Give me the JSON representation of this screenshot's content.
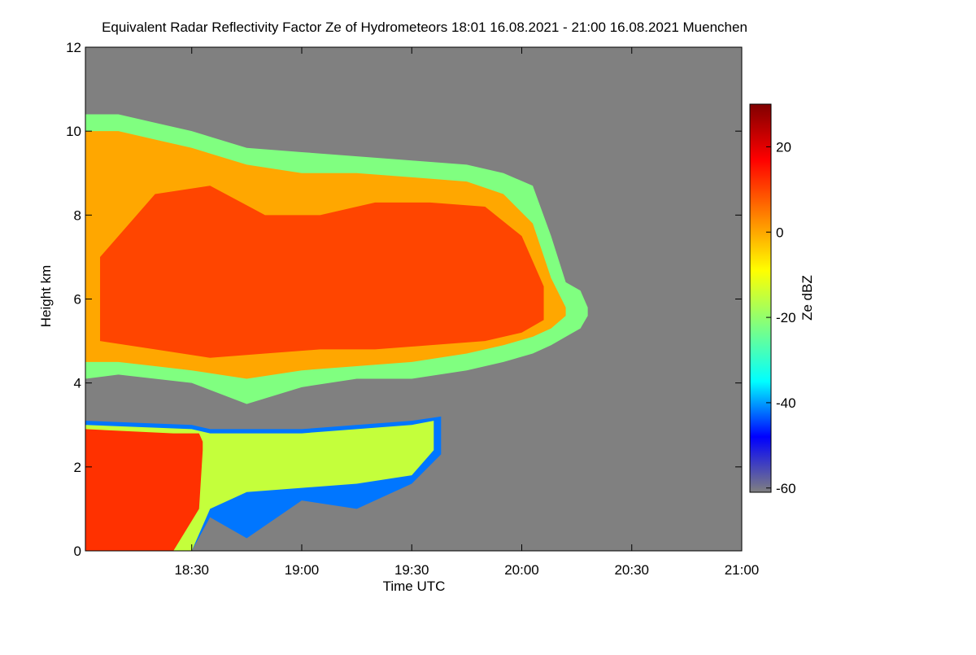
{
  "chart_data": {
    "type": "radar-echo",
    "title": "Equivalent Radar Reflectivity Factor Ze of Hydrometeors   18:01 16.08.2021 - 21:00 16.08.2021 Muenchen",
    "xlabel": "Time UTC",
    "ylabel": "Height km",
    "colorbar_label": "Ze dBZ",
    "background": "#808080",
    "xlim": [
      1081,
      1260
    ],
    "xticks": [
      {
        "value": 1110,
        "label": "18:30"
      },
      {
        "value": 1140,
        "label": "19:00"
      },
      {
        "value": 1170,
        "label": "19:30"
      },
      {
        "value": 1200,
        "label": "20:00"
      },
      {
        "value": 1230,
        "label": "20:30"
      },
      {
        "value": 1260,
        "label": "21:00"
      }
    ],
    "ylim": [
      0,
      12
    ],
    "yticks": [
      0,
      2,
      4,
      6,
      8,
      10,
      12
    ],
    "zlim": [
      -61,
      30
    ],
    "zticks": [
      -60,
      -40,
      -20,
      0,
      20
    ],
    "colormap": [
      "#808080",
      "#0000ff",
      "#00ffff",
      "#80ff80",
      "#ffff00",
      "#ff8000",
      "#ff0000",
      "#800000"
    ],
    "layers": [
      {
        "ze": -22,
        "x": [
          1081,
          1090,
          1100,
          1110,
          1125,
          1140,
          1155,
          1170,
          1185,
          1195,
          1203,
          1208,
          1212,
          1216,
          1218
        ],
        "top": [
          10.4,
          10.4,
          10.2,
          10.0,
          9.6,
          9.5,
          9.4,
          9.3,
          9.2,
          9.0,
          8.7,
          7.5,
          6.4,
          6.2,
          5.8
        ],
        "bottom": [
          4.1,
          4.2,
          4.1,
          4.0,
          3.5,
          3.9,
          4.1,
          4.1,
          4.3,
          4.5,
          4.7,
          4.9,
          5.1,
          5.3,
          5.6
        ]
      },
      {
        "ze": 0,
        "x": [
          1081,
          1090,
          1100,
          1110,
          1125,
          1140,
          1155,
          1170,
          1185,
          1195,
          1203,
          1208,
          1212
        ],
        "top": [
          10.0,
          10.0,
          9.8,
          9.6,
          9.2,
          9.0,
          9.0,
          8.9,
          8.8,
          8.5,
          7.8,
          6.5,
          5.8
        ],
        "bottom": [
          4.5,
          4.5,
          4.4,
          4.3,
          4.1,
          4.3,
          4.4,
          4.5,
          4.7,
          4.9,
          5.1,
          5.3,
          5.6
        ]
      },
      {
        "ze": 10,
        "x": [
          1085,
          1100,
          1115,
          1130,
          1145,
          1160,
          1175,
          1190,
          1200,
          1206
        ],
        "top": [
          7.0,
          8.5,
          8.7,
          8.0,
          8.0,
          8.3,
          8.3,
          8.2,
          7.5,
          6.3
        ],
        "bottom": [
          5.0,
          4.8,
          4.6,
          4.7,
          4.8,
          4.8,
          4.9,
          5.0,
          5.2,
          5.5
        ]
      },
      {
        "ze": -42,
        "x": [
          1081,
          1110,
          1115,
          1125,
          1140,
          1155,
          1170,
          1178
        ],
        "top": [
          3.1,
          3.0,
          2.9,
          2.9,
          2.9,
          3.0,
          3.1,
          3.2
        ],
        "bottom": [
          0,
          0,
          0.8,
          0.3,
          1.2,
          1.0,
          1.6,
          2.3
        ]
      },
      {
        "ze": -15,
        "x": [
          1081,
          1110,
          1115,
          1125,
          1140,
          1155,
          1170,
          1176
        ],
        "top": [
          3.0,
          2.9,
          2.8,
          2.8,
          2.8,
          2.9,
          3.0,
          3.1
        ],
        "bottom": [
          0,
          0,
          1.0,
          1.4,
          1.5,
          1.6,
          1.8,
          2.4
        ]
      },
      {
        "ze": 12,
        "x": [
          1081,
          1105,
          1112,
          1113
        ],
        "top": [
          2.9,
          2.8,
          2.8,
          2.6
        ],
        "bottom": [
          0,
          0,
          1.0,
          2.4
        ]
      }
    ]
  }
}
